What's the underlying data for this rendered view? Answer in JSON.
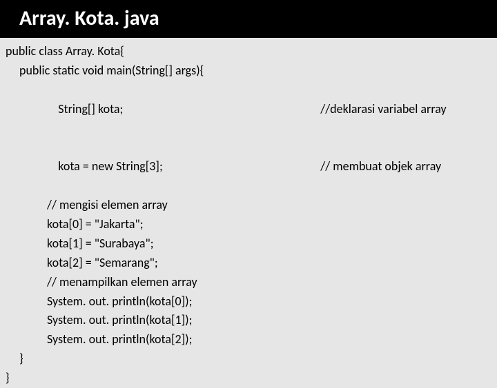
{
  "title": {
    "text": "Array. Kota. java",
    "fontsize": 30
  },
  "code": {
    "fontsize": 18,
    "lines": {
      "l0": "public class Array. Kota{",
      "l1": "public static void main(String[] args){",
      "l2a": "String[] kota;",
      "l2b": "//deklarasi variabel array",
      "l3a": "kota = new String[3];",
      "l3b": "// membuat objek array",
      "l4": "",
      "l5": "// mengisi elemen array",
      "l6": "kota[0] = \"Jakarta\";",
      "l7": "kota[1] = \"Surabaya\";",
      "l8": "kota[2] = \"Semarang\";",
      "l9": "// menampilkan elemen array",
      "l10": "System. out. println(kota[0]);",
      "l11": "System. out. println(kota[1]);",
      "l12": "System. out. println(kota[2]);",
      "l13": "}",
      "l14": "}"
    }
  },
  "colors": {
    "title_bg": "#000000",
    "title_fg": "#ffffff",
    "page_bg": "#e6e6e6",
    "code_fg": "#000000"
  }
}
